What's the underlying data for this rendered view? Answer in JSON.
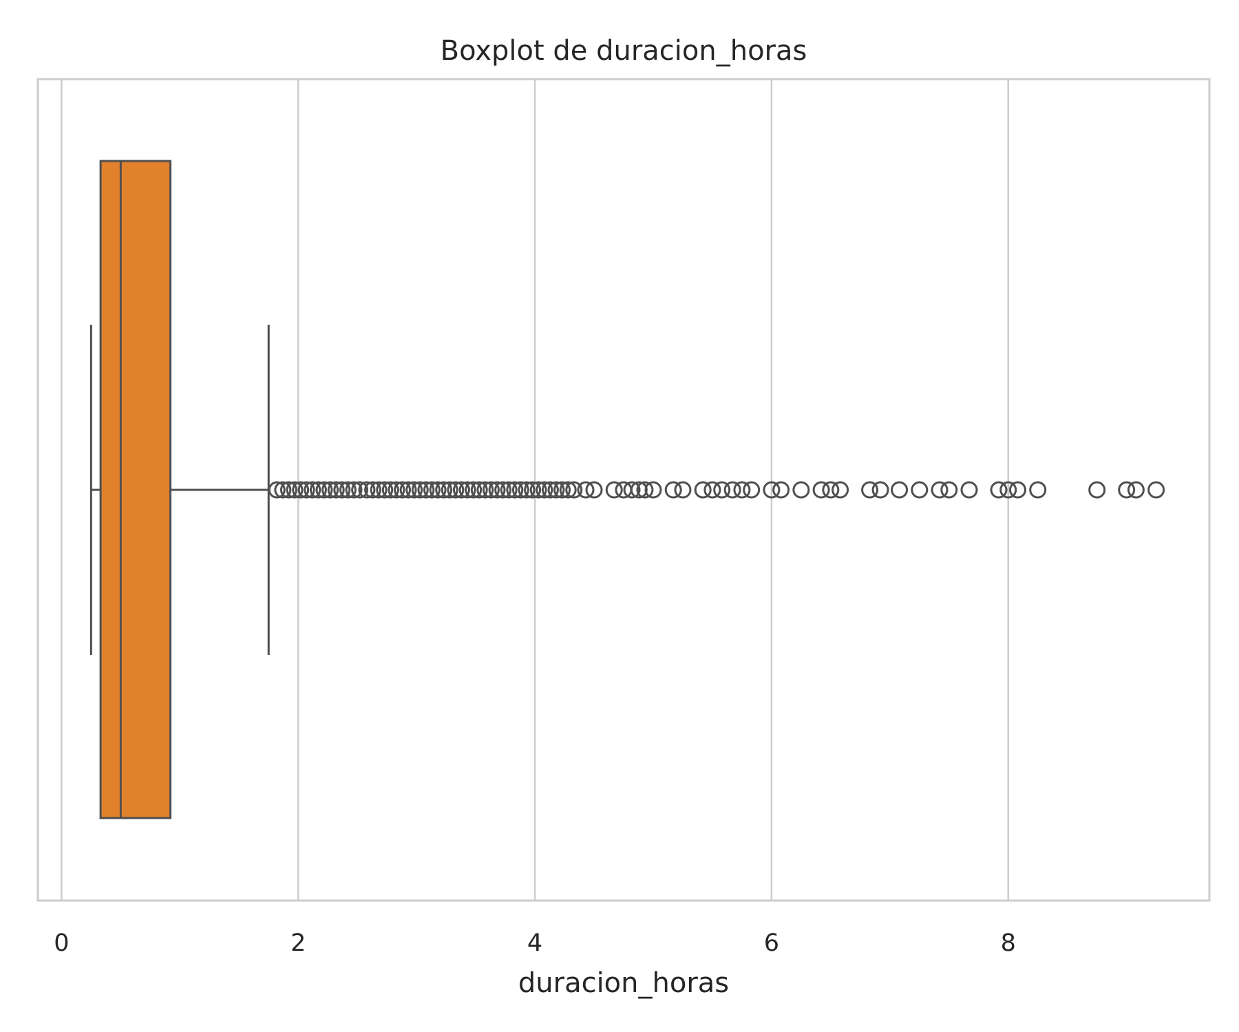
{
  "chart_data": {
    "type": "boxplot",
    "orientation": "horizontal",
    "title": "Boxplot de duracion_horas",
    "xlabel": "duracion_horas",
    "ylabel": "",
    "xlim": [
      -0.2,
      9.7
    ],
    "xticks": [
      0,
      2,
      4,
      6,
      8
    ],
    "grid": true,
    "grid_axis": "x",
    "colors": {
      "box_fill": "#E1812C",
      "line": "#4F4F4F",
      "grid": "#CCCCCC",
      "frame": "#CCCCCC",
      "text": "#262626"
    },
    "box": {
      "whisker_low": 0.25,
      "q1": 0.33,
      "median": 0.5,
      "q3": 0.92,
      "whisker_high": 1.75
    },
    "outliers": [
      1.82,
      1.87,
      1.92,
      1.97,
      2.02,
      2.07,
      2.12,
      2.17,
      2.22,
      2.27,
      2.32,
      2.37,
      2.42,
      2.47,
      2.52,
      2.58,
      2.63,
      2.68,
      2.73,
      2.78,
      2.83,
      2.88,
      2.93,
      2.98,
      3.03,
      3.08,
      3.13,
      3.18,
      3.23,
      3.28,
      3.33,
      3.38,
      3.43,
      3.48,
      3.53,
      3.58,
      3.63,
      3.68,
      3.73,
      3.78,
      3.83,
      3.88,
      3.93,
      3.98,
      4.03,
      4.08,
      4.13,
      4.18,
      4.23,
      4.28,
      4.33,
      4.43,
      4.5,
      4.67,
      4.75,
      4.82,
      4.88,
      4.93,
      5.0,
      5.17,
      5.25,
      5.42,
      5.5,
      5.58,
      5.67,
      5.75,
      5.83,
      6.0,
      6.08,
      6.25,
      6.42,
      6.5,
      6.58,
      6.83,
      6.92,
      7.08,
      7.25,
      7.42,
      7.5,
      7.67,
      7.92,
      8.0,
      8.08,
      8.25,
      8.75,
      9.0,
      9.08,
      9.25
    ]
  }
}
